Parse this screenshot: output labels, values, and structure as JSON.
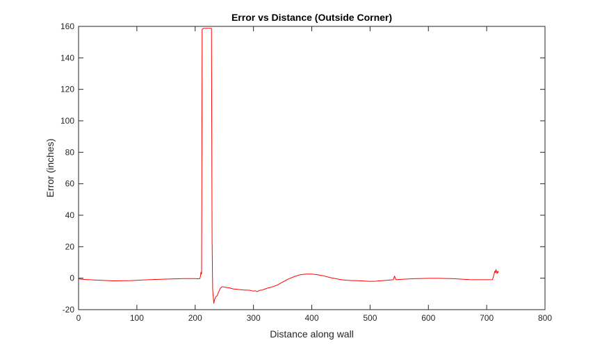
{
  "chart_data": {
    "type": "line",
    "title": "Error vs Distance (Outside Corner)",
    "xlabel": "Distance along wall",
    "ylabel": "Error (inches)",
    "xlim": [
      0,
      800
    ],
    "ylim": [
      -20,
      160
    ],
    "xticks": [
      0,
      100,
      200,
      300,
      400,
      500,
      600,
      700,
      800
    ],
    "yticks": [
      -20,
      0,
      20,
      40,
      60,
      80,
      100,
      120,
      140,
      160
    ],
    "grid": false,
    "box": true,
    "series": [
      {
        "color": "#ff0000",
        "x": [
          0,
          10,
          30,
          60,
          90,
          120,
          150,
          180,
          200,
          205,
          208,
          209,
          210,
          210.5,
          211,
          212,
          213,
          214,
          216,
          220,
          225,
          227,
          228,
          229,
          230,
          231,
          232,
          233,
          235,
          238,
          240,
          243,
          246,
          249,
          252,
          255,
          260,
          265,
          270,
          275,
          280,
          285,
          290,
          295,
          300,
          303,
          306,
          308,
          310,
          315,
          320,
          325,
          330,
          340,
          350,
          360,
          370,
          380,
          390,
          400,
          410,
          420,
          430,
          440,
          450,
          460,
          470,
          480,
          490,
          500,
          510,
          520,
          530,
          540,
          541,
          542,
          543,
          544,
          545,
          546,
          550,
          560,
          570,
          580,
          590,
          600,
          610,
          620,
          630,
          640,
          650,
          660,
          670,
          680,
          690,
          700,
          710,
          713,
          714,
          715,
          716,
          717,
          718,
          719,
          720
        ],
        "y": [
          -0.5,
          -0.8,
          -1.2,
          -1.7,
          -1.5,
          -1.0,
          -0.6,
          -0.3,
          -0.3,
          -0.4,
          -0.3,
          1.0,
          3.8,
          2.5,
          3.0,
          158.0,
          158.5,
          158.7,
          158.7,
          158.7,
          158.7,
          158.7,
          158.7,
          24.0,
          -7.0,
          -12.0,
          -16.0,
          -14.0,
          -12.0,
          -11.0,
          -9.0,
          -6.5,
          -5.5,
          -5.5,
          -5.8,
          -6.0,
          -6.3,
          -6.8,
          -7.0,
          -7.2,
          -7.4,
          -7.6,
          -7.6,
          -7.8,
          -8.2,
          -8.0,
          -8.5,
          -8.2,
          -7.8,
          -7.5,
          -6.8,
          -6.2,
          -5.8,
          -4.5,
          -2.5,
          -0.5,
          1.0,
          2.2,
          2.6,
          2.6,
          2.2,
          1.5,
          0.5,
          -0.3,
          -0.9,
          -1.3,
          -1.5,
          -1.6,
          -1.8,
          -2.0,
          -1.9,
          -1.6,
          -1.3,
          -1.0,
          0.3,
          1.3,
          0.3,
          -0.8,
          -1.0,
          -0.9,
          -0.8,
          -0.6,
          -0.4,
          -0.3,
          -0.2,
          -0.1,
          -0.1,
          -0.1,
          -0.2,
          -0.3,
          -0.5,
          -0.7,
          -0.9,
          -1.0,
          -1.0,
          -1.0,
          -0.9,
          3.0,
          4.5,
          3.5,
          5.5,
          4.0,
          3.0,
          4.5,
          3.5
        ]
      }
    ]
  }
}
